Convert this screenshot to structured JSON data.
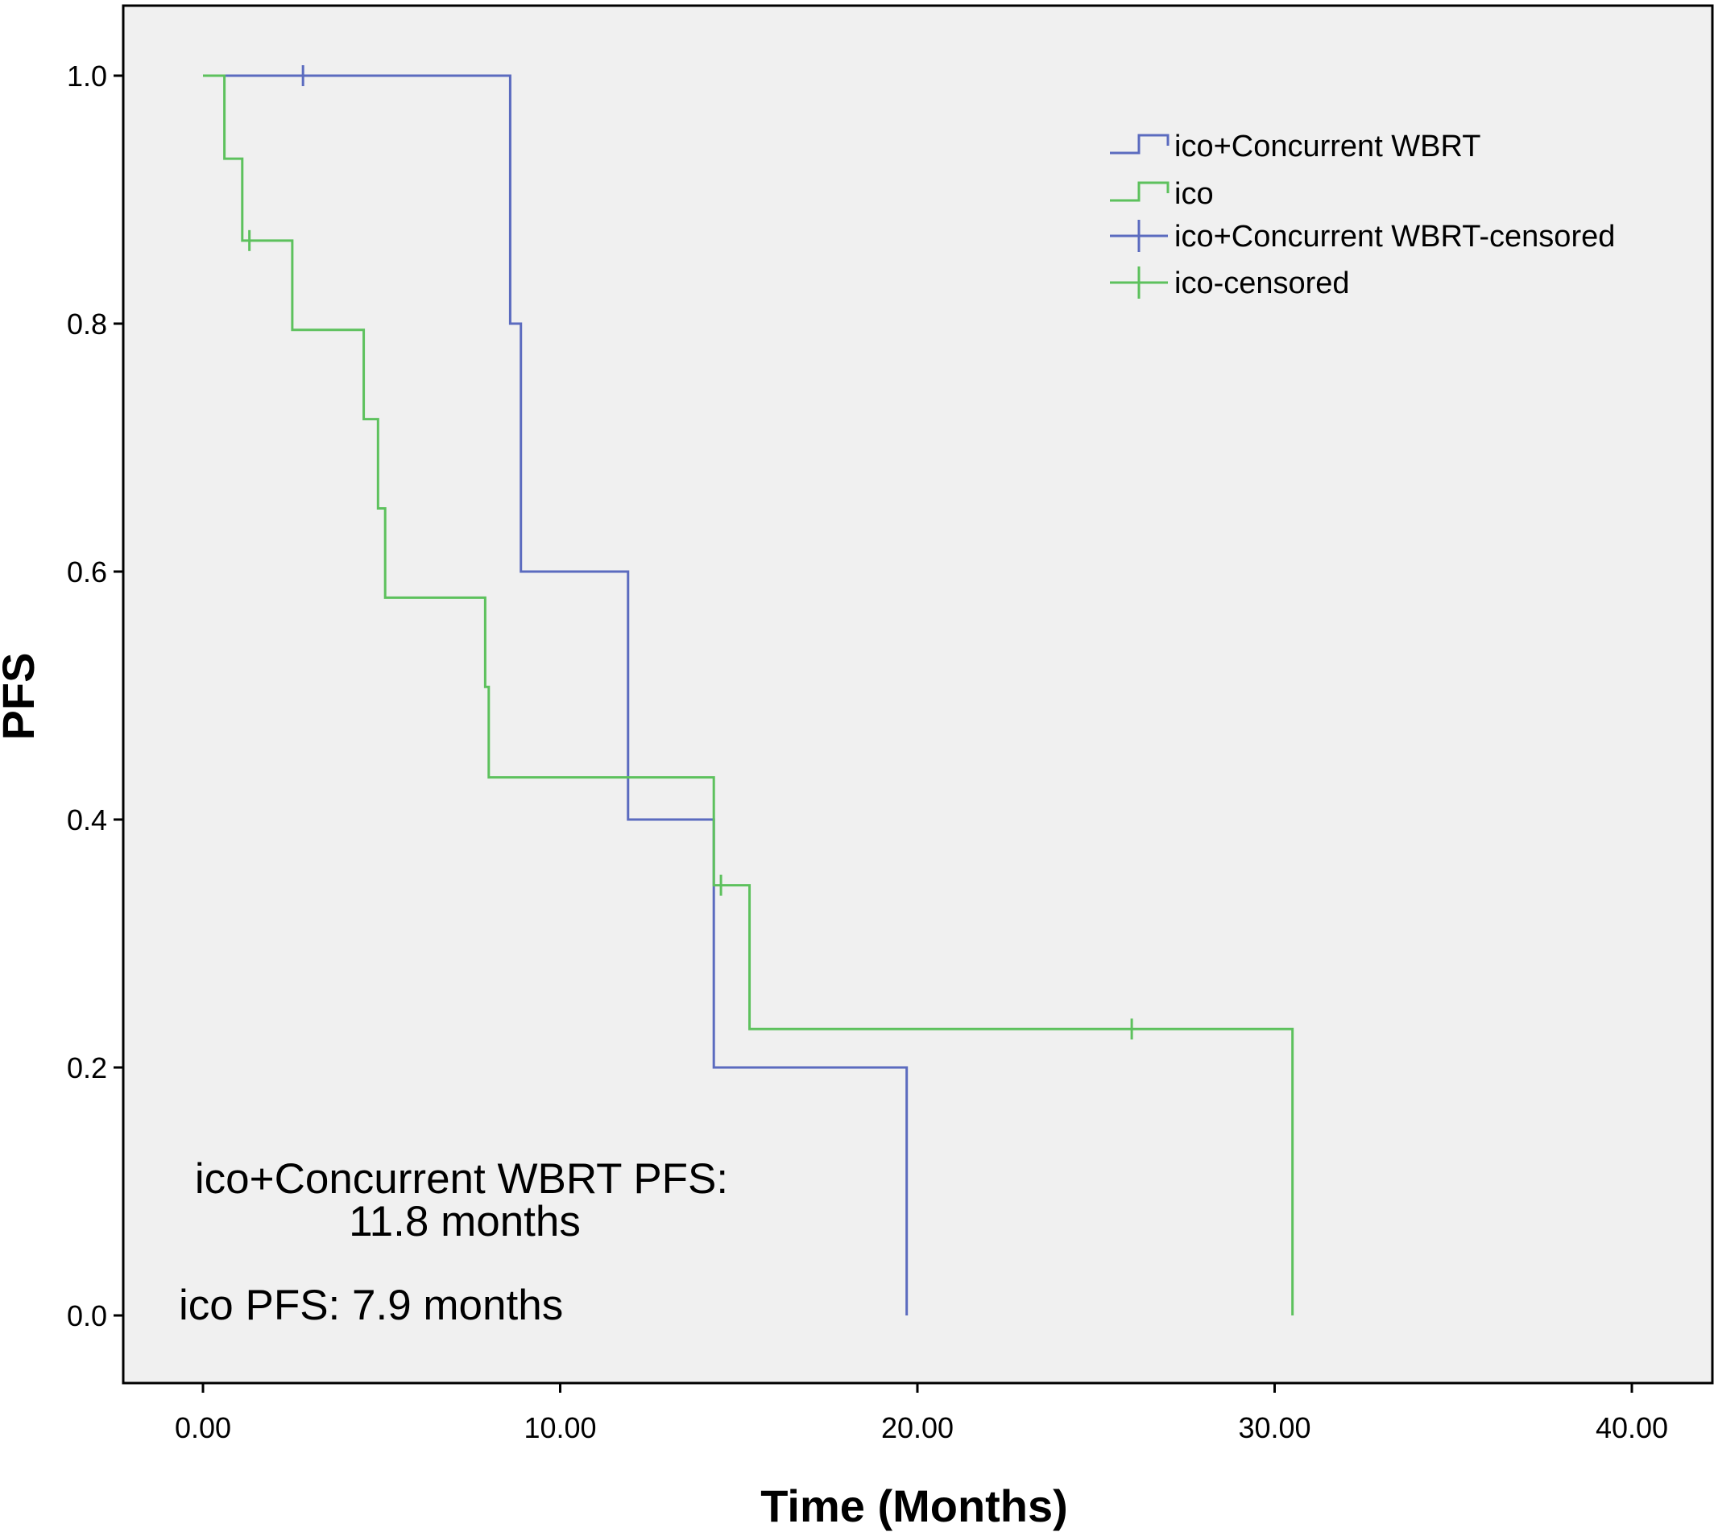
{
  "chart_data": {
    "type": "line",
    "step": true,
    "title": "",
    "xlabel": "Time (Months)",
    "ylabel": "PFS",
    "xlim": [
      0,
      40
    ],
    "ylim": [
      0,
      1
    ],
    "xticks": [
      0,
      10,
      20,
      30,
      40
    ],
    "xtick_labels": [
      "0.00",
      "10.00",
      "20.00",
      "30.00",
      "40.00"
    ],
    "yticks": [
      0,
      0.2,
      0.4,
      0.6,
      0.8,
      1.0
    ],
    "ytick_labels": [
      "0.0",
      "0.2",
      "0.4",
      "0.6",
      "0.8",
      "1.0"
    ],
    "grid": false,
    "legend_position": "top-right",
    "colors": {
      "background": "#f0f0f0",
      "wbrt": "#5b6bbf",
      "ico": "#5dc15d"
    },
    "series": [
      {
        "name": "ico+Concurrent WBRT",
        "color": "#5b6bbf",
        "x": [
          0.6,
          8.6,
          8.9,
          11.9,
          14.3,
          19.7
        ],
        "y": [
          1.0,
          0.8,
          0.6,
          0.4,
          0.2,
          0.0
        ]
      },
      {
        "name": "ico",
        "color": "#5dc15d",
        "x": [
          0,
          0.6,
          1.1,
          2.5,
          4.5,
          4.9,
          5.1,
          7.9,
          8.0,
          14.3,
          15.3,
          30.5
        ],
        "y": [
          1.0,
          0.933,
          0.867,
          0.795,
          0.723,
          0.651,
          0.579,
          0.507,
          0.434,
          0.347,
          0.231,
          0.0
        ]
      }
    ],
    "censored": [
      {
        "name": "ico+Concurrent WBRT-censored",
        "color": "#5b6bbf",
        "x": [
          2.8
        ],
        "y": [
          1.0
        ]
      },
      {
        "name": "ico-censored",
        "color": "#5dc15d",
        "x": [
          1.3,
          14.5,
          26.0
        ],
        "y": [
          0.867,
          0.347,
          0.231
        ]
      }
    ],
    "annotations": [
      {
        "line1": "ico+Concurrent WBRT PFS:",
        "line2": "11.8 months"
      },
      {
        "line1": "ico PFS: 7.9 months"
      }
    ]
  }
}
